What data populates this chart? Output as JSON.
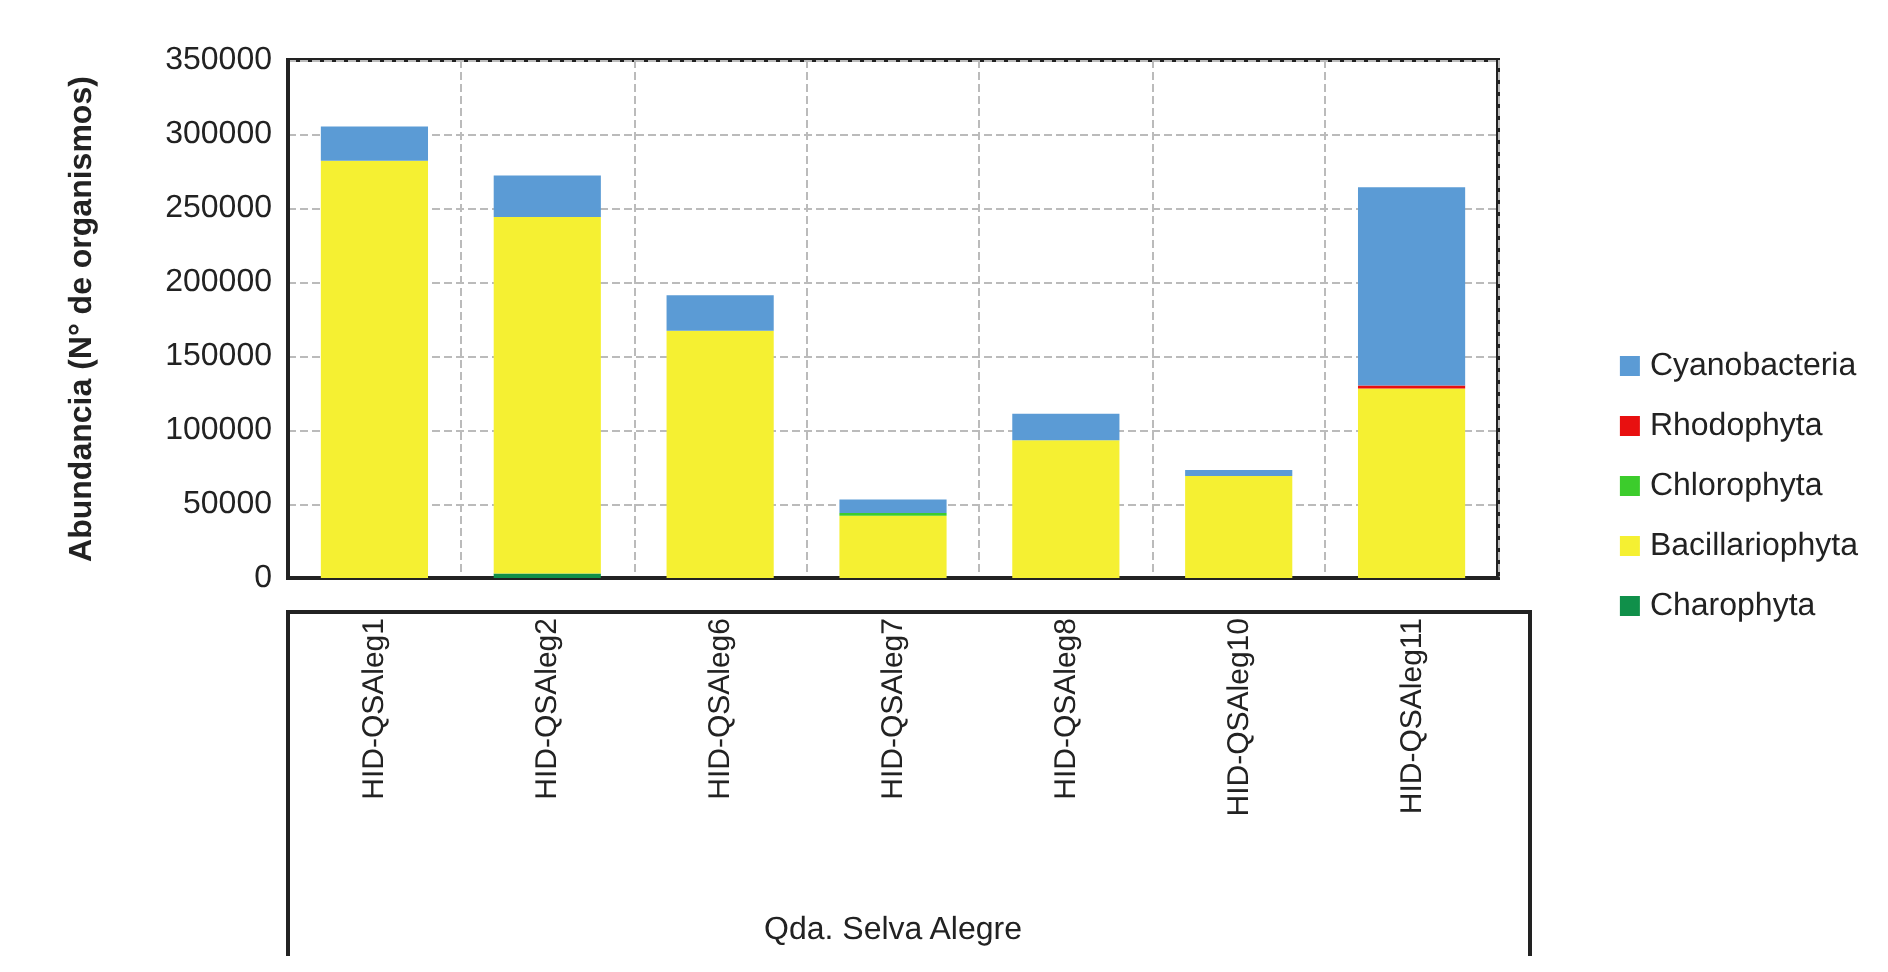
{
  "chart_data": {
    "type": "bar",
    "stacked": true,
    "ylabel": "Abundancia (N° de organismos)",
    "xlabel": "Qda. Selva Alegre",
    "categories": [
      "HID-QSAleg1",
      "HID-QSAleg2",
      "HID-QSAleg6",
      "HID-QSAleg7",
      "HID-QSAleg8",
      "HID-QSAleg10",
      "HID-QSAleg11"
    ],
    "series": [
      {
        "name": "Charophyta",
        "color": "#10904a",
        "values": [
          0,
          3000,
          0,
          0,
          0,
          0,
          0
        ]
      },
      {
        "name": "Bacillariophyta",
        "color": "#f5f032",
        "values": [
          282000,
          241000,
          167000,
          42000,
          93000,
          69000,
          128000
        ]
      },
      {
        "name": "Chlorophyta",
        "color": "#3ccc2c",
        "values": [
          0,
          0,
          0,
          2000,
          0,
          0,
          0
        ]
      },
      {
        "name": "Rhodophyta",
        "color": "#e81010",
        "values": [
          0,
          0,
          0,
          0,
          0,
          0,
          2000
        ]
      },
      {
        "name": "Cyanobacteria",
        "color": "#5b9bd5",
        "values": [
          23000,
          28000,
          24000,
          9000,
          18000,
          4000,
          134000
        ]
      }
    ],
    "ylim": [
      0,
      350000
    ],
    "yticks": [
      0,
      50000,
      100000,
      150000,
      200000,
      250000,
      300000,
      350000
    ],
    "grid": true,
    "legend": "right"
  }
}
